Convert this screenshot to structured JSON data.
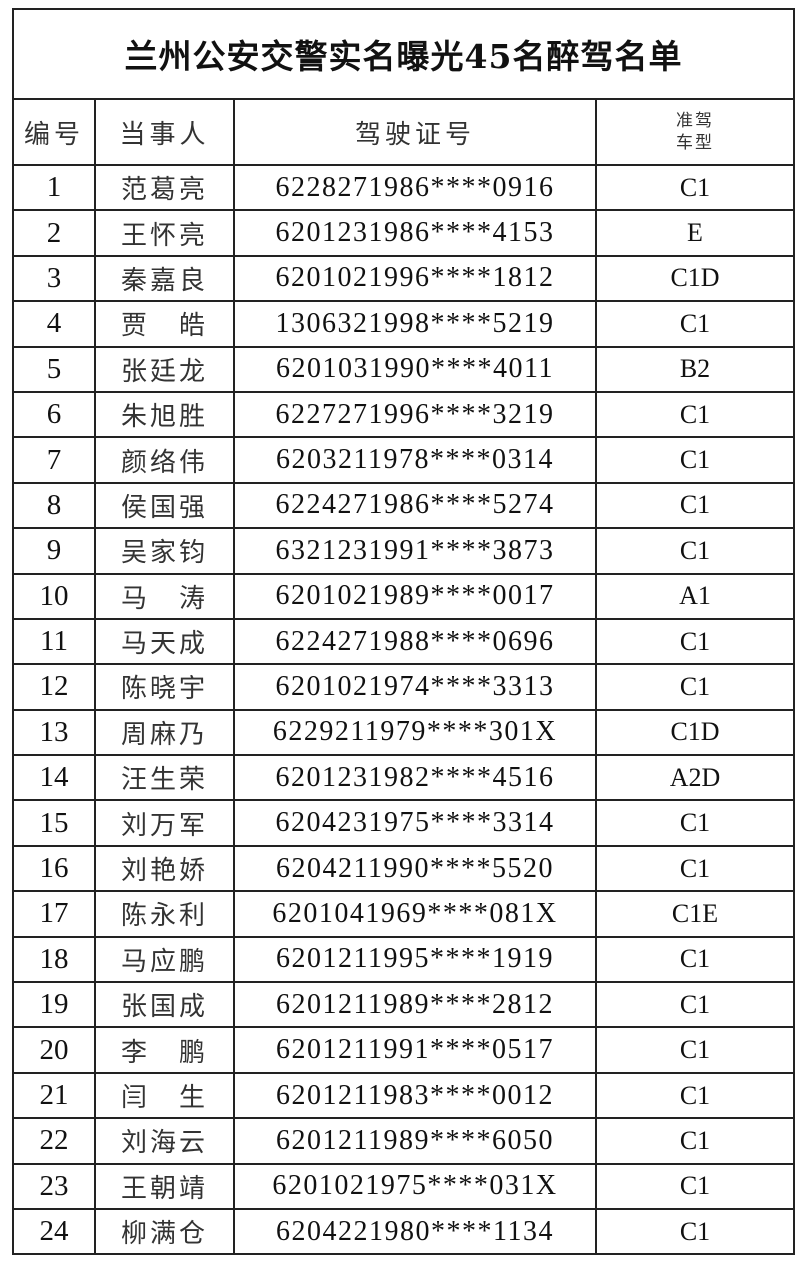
{
  "title": "兰州公安交警实名曝光45名醉驾名单",
  "headers": {
    "number": "编号",
    "person": "当事人",
    "license": "驾驶证号",
    "class_line1": "准驾",
    "class_line2": "车型"
  },
  "rows": [
    {
      "no": "1",
      "name": "范葛亮",
      "id": "6228271986****0916",
      "cls": "C1"
    },
    {
      "no": "2",
      "name": "王怀亮",
      "id": "6201231986****4153",
      "cls": "E"
    },
    {
      "no": "3",
      "name": "秦嘉良",
      "id": "6201021996****1812",
      "cls": "C1D"
    },
    {
      "no": "4",
      "name": "贾　皓",
      "id": "1306321998****5219",
      "cls": "C1"
    },
    {
      "no": "5",
      "name": "张廷龙",
      "id": "6201031990****4011",
      "cls": "B2"
    },
    {
      "no": "6",
      "name": "朱旭胜",
      "id": "6227271996****3219",
      "cls": "C1"
    },
    {
      "no": "7",
      "name": "颜络伟",
      "id": "6203211978****0314",
      "cls": "C1"
    },
    {
      "no": "8",
      "name": "侯国强",
      "id": "6224271986****5274",
      "cls": "C1"
    },
    {
      "no": "9",
      "name": "吴家钧",
      "id": "6321231991****3873",
      "cls": "C1"
    },
    {
      "no": "10",
      "name": "马　涛",
      "id": "6201021989****0017",
      "cls": "A1"
    },
    {
      "no": "11",
      "name": "马天成",
      "id": "6224271988****0696",
      "cls": "C1"
    },
    {
      "no": "12",
      "name": "陈晓宇",
      "id": "6201021974****3313",
      "cls": "C1"
    },
    {
      "no": "13",
      "name": "周麻乃",
      "id": "6229211979****301X",
      "cls": "C1D"
    },
    {
      "no": "14",
      "name": "汪生荣",
      "id": "6201231982****4516",
      "cls": "A2D"
    },
    {
      "no": "15",
      "name": "刘万军",
      "id": "6204231975****3314",
      "cls": "C1"
    },
    {
      "no": "16",
      "name": "刘艳娇",
      "id": "6204211990****5520",
      "cls": "C1"
    },
    {
      "no": "17",
      "name": "陈永利",
      "id": "6201041969****081X",
      "cls": "C1E"
    },
    {
      "no": "18",
      "name": "马应鹏",
      "id": "6201211995****1919",
      "cls": "C1"
    },
    {
      "no": "19",
      "name": "张国成",
      "id": "6201211989****2812",
      "cls": "C1"
    },
    {
      "no": "20",
      "name": "李　鹏",
      "id": "6201211991****0517",
      "cls": "C1"
    },
    {
      "no": "21",
      "name": "闫　生",
      "id": "6201211983****0012",
      "cls": "C1"
    },
    {
      "no": "22",
      "name": "刘海云",
      "id": "6201211989****6050",
      "cls": "C1"
    },
    {
      "no": "23",
      "name": "王朝靖",
      "id": "6201021975****031X",
      "cls": "C1"
    },
    {
      "no": "24",
      "name": "柳满仓",
      "id": "6204221980****1134",
      "cls": "C1"
    }
  ]
}
